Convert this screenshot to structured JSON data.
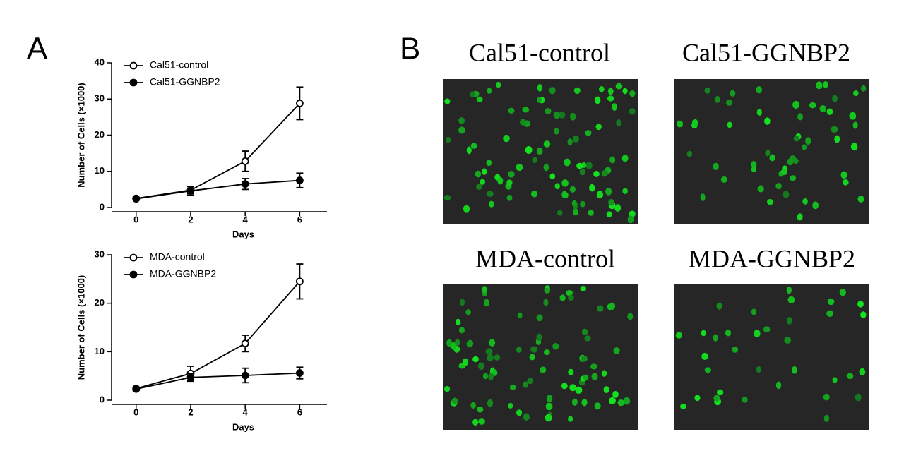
{
  "panels": {
    "a_label": "A",
    "b_label": "B"
  },
  "chart_data": [
    {
      "type": "line",
      "ylabel": "Number of Cells (×1000)",
      "xlabel": "Days",
      "xlim": [
        -0.9,
        7
      ],
      "xticks": [
        0,
        2,
        4,
        6
      ],
      "ylim": [
        0,
        40
      ],
      "yticks": [
        0,
        10,
        20,
        30,
        40
      ],
      "x": [
        0,
        2,
        4,
        6
      ],
      "series": [
        {
          "name": "Cal51-control",
          "color": "#000000",
          "marker": "open",
          "values": [
            2.5,
            4.8,
            12.8,
            28.8
          ],
          "errors": [
            0.3,
            1.0,
            2.8,
            4.5
          ]
        },
        {
          "name": "Cal51-GGNBP2",
          "color": "#000000",
          "marker": "filled",
          "values": [
            2.4,
            4.6,
            6.5,
            7.5
          ],
          "errors": [
            0.3,
            1.2,
            1.5,
            2.0
          ]
        }
      ]
    },
    {
      "type": "line",
      "ylabel": "Number of Cells (×1000)",
      "xlabel": "Days",
      "xlim": [
        -0.9,
        7
      ],
      "xticks": [
        0,
        2,
        4,
        6
      ],
      "ylim": [
        0,
        30
      ],
      "yticks": [
        0,
        10,
        20,
        30
      ],
      "x": [
        0,
        2,
        4,
        6
      ],
      "series": [
        {
          "name": "MDA-control",
          "color": "#000000",
          "marker": "open",
          "values": [
            2.4,
            5.5,
            11.7,
            24.5
          ],
          "errors": [
            0.3,
            1.5,
            1.7,
            3.6
          ]
        },
        {
          "name": "MDA-GGNBP2",
          "color": "#000000",
          "marker": "filled",
          "values": [
            2.3,
            4.7,
            5.1,
            5.6
          ],
          "errors": [
            0.3,
            0.8,
            1.5,
            1.2
          ]
        }
      ]
    }
  ],
  "images": [
    {
      "title": "Cal51-control"
    },
    {
      "title": "Cal51-GGNBP2"
    },
    {
      "title": "MDA-control"
    },
    {
      "title": "MDA-GGNBP2"
    }
  ]
}
